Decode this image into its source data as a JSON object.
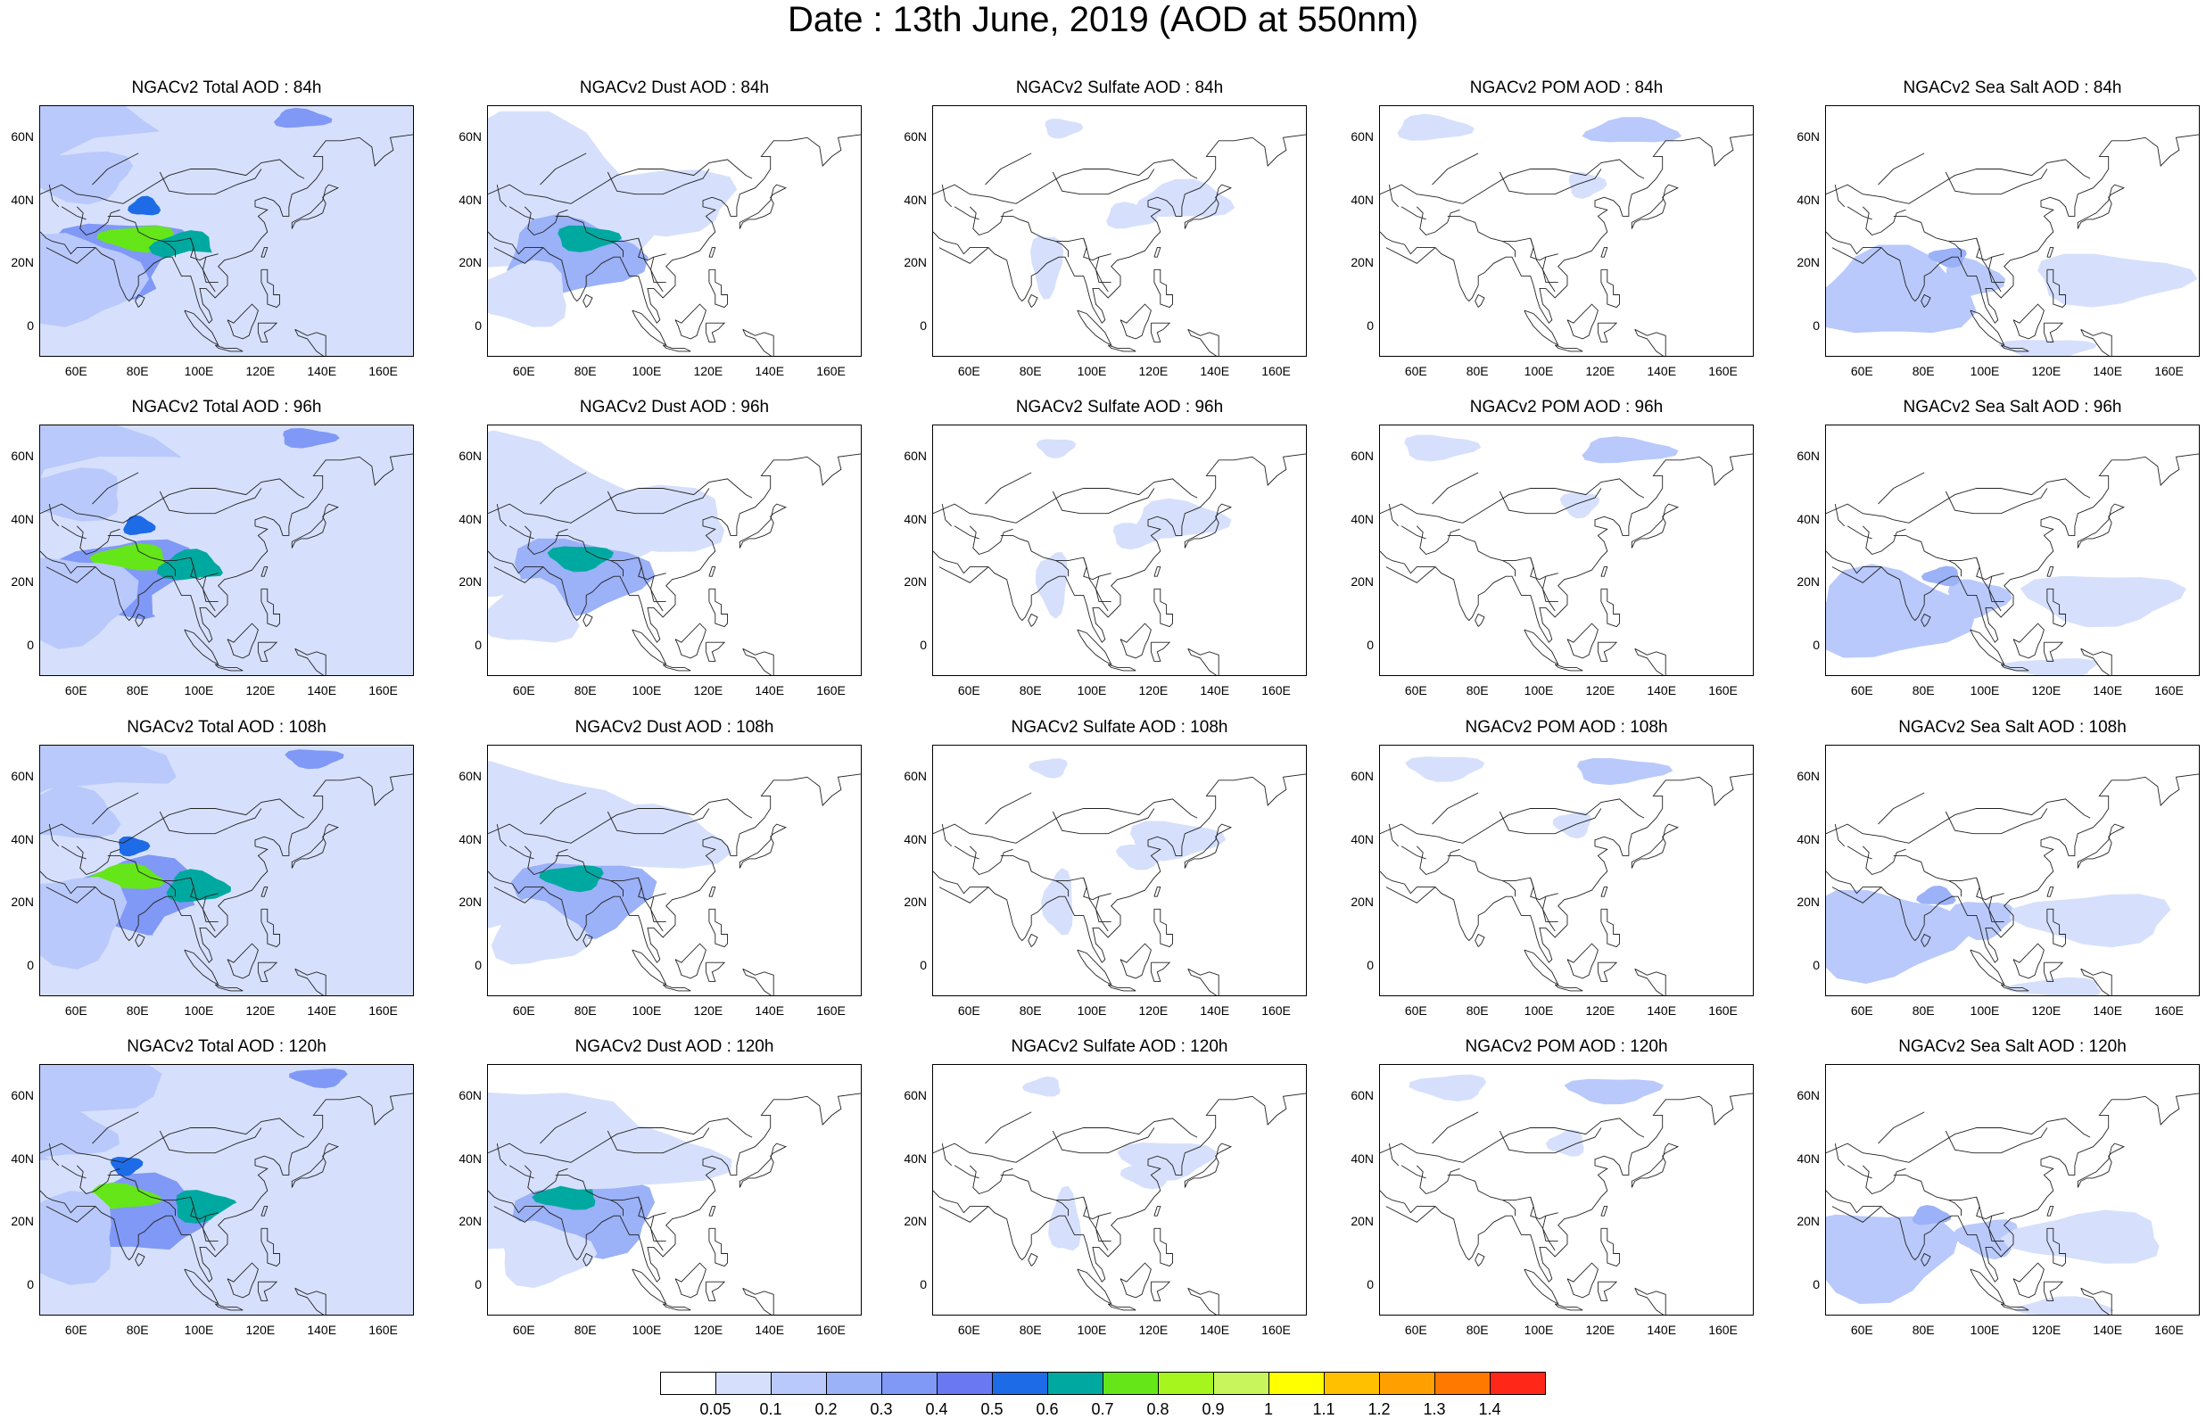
{
  "title": "Date : 13th June, 2019 (AOD at 550nm)",
  "lat_labels": [
    "60N",
    "40N",
    "20N",
    "0"
  ],
  "lon_labels": [
    "60E",
    "80E",
    "100E",
    "120E",
    "140E",
    "160E"
  ],
  "rows": [
    {
      "titles": [
        "NGACv2 Total AOD : 84h",
        "NGACv2 Dust AOD : 84h",
        "NGACv2 Sulfate AOD : 84h",
        "NGACv2 POM AOD : 84h",
        "NGACv2 Sea Salt AOD : 84h"
      ]
    },
    {
      "titles": [
        "NGACv2 Total AOD : 96h",
        "NGACv2 Dust AOD : 96h",
        "NGACv2 Sulfate AOD : 96h",
        "NGACv2 POM AOD : 96h",
        "NGACv2 Sea Salt AOD : 96h"
      ]
    },
    {
      "titles": [
        "NGACv2 Total AOD : 108h",
        "NGACv2 Dust AOD : 108h",
        "NGACv2 Sulfate AOD : 108h",
        "NGACv2 POM AOD : 108h",
        "NGACv2 Sea Salt AOD : 108h"
      ]
    },
    {
      "titles": [
        "NGACv2 Total AOD : 120h",
        "NGACv2 Dust AOD : 120h",
        "NGACv2 Sulfate AOD : 120h",
        "NGACv2 POM AOD : 120h",
        "NGACv2 Sea Salt  AOD : 120h"
      ]
    }
  ],
  "colorbar": {
    "labels": [
      "0.05",
      "0.1",
      "0.2",
      "0.3",
      "0.4",
      "0.5",
      "0.6",
      "0.7",
      "0.8",
      "0.9",
      "1",
      "1.1",
      "1.2",
      "1.3",
      "1.4"
    ],
    "colors": [
      "#ffffff",
      "#d6e0fc",
      "#b9c9fb",
      "#9bb1f8",
      "#8098f6",
      "#6a78f2",
      "#1e6be8",
      "#00a9a0",
      "#64e619",
      "#a6f51c",
      "#c8f55c",
      "#ffff00",
      "#ffc000",
      "#ffa000",
      "#ff7800",
      "#ff2818"
    ]
  }
}
